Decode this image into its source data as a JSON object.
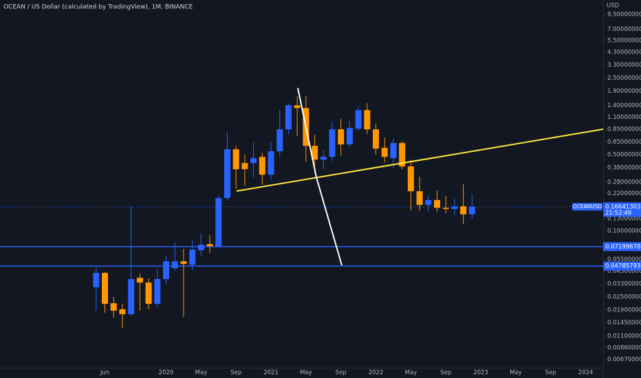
{
  "chart_data": {
    "type": "candlestick",
    "title": "OCEAN / US Dollar (calculated by TradingView), 1M, BINANCE",
    "y_axis_label": "USD",
    "symbol": "OCEANUSD",
    "countdown": "21:52:49",
    "log_scale": true,
    "grid": false,
    "up_color": "#2962ff",
    "down_color": "#ff9800",
    "x": [
      "2019-05",
      "2019-06",
      "2019-07",
      "2019-08",
      "2019-09",
      "2019-10",
      "2019-11",
      "2019-12",
      "2020-01",
      "2020-02",
      "2020-03",
      "2020-04",
      "2020-05",
      "2020-06",
      "2020-07",
      "2020-08",
      "2020-09",
      "2020-10",
      "2020-11",
      "2020-12",
      "2021-01",
      "2021-02",
      "2021-03",
      "2021-04",
      "2021-05",
      "2021-06",
      "2021-07",
      "2021-08",
      "2021-09",
      "2021-10",
      "2021-11",
      "2021-12",
      "2022-01",
      "2022-02",
      "2022-03",
      "2022-04",
      "2022-05",
      "2022-06",
      "2022-07",
      "2022-08",
      "2022-09",
      "2022-10",
      "2022-11",
      "2022-12"
    ],
    "open": [
      0.0306,
      0.0414,
      0.0219,
      0.0193,
      0.0174,
      0.0374,
      0.0338,
      0.0216,
      0.0364,
      0.0458,
      0.0529,
      0.0493,
      0.0667,
      0.076,
      0.0728,
      0.2,
      0.558,
      0.418,
      0.418,
      0.476,
      0.327,
      0.535,
      0.849,
      1.408,
      1.329,
      0.6,
      0.449,
      0.476,
      0.849,
      0.618,
      0.861,
      1.272,
      0.849,
      0.575,
      0.463,
      0.636,
      0.389,
      0.231,
      0.173,
      0.192,
      0.163,
      0.159,
      0.168,
      0.142
    ],
    "high": [
      0.0472,
      0.042,
      0.025,
      0.0216,
      0.168,
      0.0408,
      0.0369,
      0.0445,
      0.0594,
      0.0794,
      0.0687,
      0.0817,
      0.0944,
      0.0917,
      0.209,
      0.801,
      0.6,
      0.497,
      0.645,
      0.519,
      0.655,
      1.272,
      1.47,
      1.698,
      1.698,
      0.756,
      0.55,
      1.01,
      1.055,
      1.025,
      1.368,
      1.47,
      0.953,
      0.714,
      0.704,
      0.664,
      0.449,
      0.313,
      0.212,
      0.235,
      0.209,
      0.197,
      0.267,
      0.218
    ],
    "low": [
      0.0187,
      0.0179,
      0.0162,
      0.013,
      0.0167,
      0.0187,
      0.0193,
      0.0198,
      0.0324,
      0.0432,
      0.0164,
      0.0439,
      0.0594,
      0.063,
      0.0707,
      0.189,
      0.241,
      0.26,
      0.309,
      0.267,
      0.291,
      0.476,
      0.767,
      0.735,
      0.43,
      0.337,
      0.367,
      0.437,
      0.49,
      0.583,
      0.825,
      0.767,
      0.497,
      0.424,
      0.372,
      0.367,
      0.154,
      0.154,
      0.15,
      0.15,
      0.146,
      0.139,
      0.116,
      0.13
    ],
    "close": [
      0.0414,
      0.0216,
      0.0187,
      0.0174,
      0.0364,
      0.0338,
      0.0216,
      0.0364,
      0.0529,
      0.0529,
      0.05,
      0.0677,
      0.0749,
      0.0728,
      0.2,
      0.558,
      0.367,
      0.367,
      0.463,
      0.327,
      0.535,
      0.849,
      1.408,
      1.329,
      0.6,
      0.449,
      0.476,
      0.849,
      0.618,
      0.874,
      1.272,
      0.849,
      0.566,
      0.476,
      0.636,
      0.389,
      0.231,
      0.173,
      0.192,
      0.163,
      0.159,
      0.168,
      0.142,
      0.16641303
    ],
    "levels": [
      0.07199678,
      0.04785793
    ],
    "level_color": "#2962ff",
    "xlim": [
      "2018-06",
      "2024-03"
    ],
    "xticks": [
      {
        "value": "2019-06",
        "label": "Jun"
      },
      {
        "value": "2020-01",
        "label": "2020"
      },
      {
        "value": "2020-05",
        "label": "May"
      },
      {
        "value": "2020-09",
        "label": "Sep"
      },
      {
        "value": "2021-01",
        "label": "2021"
      },
      {
        "value": "2021-05",
        "label": "May"
      },
      {
        "value": "2021-09",
        "label": "Sep"
      },
      {
        "value": "2022-01",
        "label": "2022"
      },
      {
        "value": "2022-05",
        "label": "May"
      },
      {
        "value": "2022-09",
        "label": "Sep"
      },
      {
        "value": "2023-01",
        "label": "2023"
      },
      {
        "value": "2023-05",
        "label": "May"
      },
      {
        "value": "2023-09",
        "label": "Sep"
      },
      {
        "value": "2024-01",
        "label": "2024"
      }
    ],
    "ylim": [
      0.00564,
      12.9
    ],
    "yticks": [
      {
        "value": 9.5,
        "label": "9.50000000"
      },
      {
        "value": 7,
        "label": "7.00000000"
      },
      {
        "value": 5.5,
        "label": "5.50000000"
      },
      {
        "value": 4.3,
        "label": "4.30000000"
      },
      {
        "value": 3.3,
        "label": "3.30000000"
      },
      {
        "value": 2.5,
        "label": "2.50000000"
      },
      {
        "value": 1.9,
        "label": "1.90000000"
      },
      {
        "value": 1.4,
        "label": "1.40000000"
      },
      {
        "value": 1.1,
        "label": "1.10000000"
      },
      {
        "value": 0.85,
        "label": "0.85000000"
      },
      {
        "value": 0.65,
        "label": "0.65000000"
      },
      {
        "value": 0.5,
        "label": "0.50000000"
      },
      {
        "value": 0.38,
        "label": "0.38000000"
      },
      {
        "value": 0.28,
        "label": "0.28000000"
      },
      {
        "value": 0.22,
        "label": "0.22000000"
      },
      {
        "value": 0.13,
        "label": "0.13000000"
      },
      {
        "value": 0.1,
        "label": "0.10000000"
      },
      {
        "value": 0.055,
        "label": "0.05500000"
      },
      {
        "value": 0.043,
        "label": "0.04300000"
      },
      {
        "value": 0.033,
        "label": "0.03300000"
      },
      {
        "value": 0.025,
        "label": "0.02500000"
      },
      {
        "value": 0.019,
        "label": "0.01900000"
      },
      {
        "value": 0.0145,
        "label": "0.01450000"
      },
      {
        "value": 0.011,
        "label": "0.01100000"
      },
      {
        "value": 0.0086,
        "label": "0.00860000"
      },
      {
        "value": 0.0067,
        "label": "0.00670000"
      }
    ]
  }
}
